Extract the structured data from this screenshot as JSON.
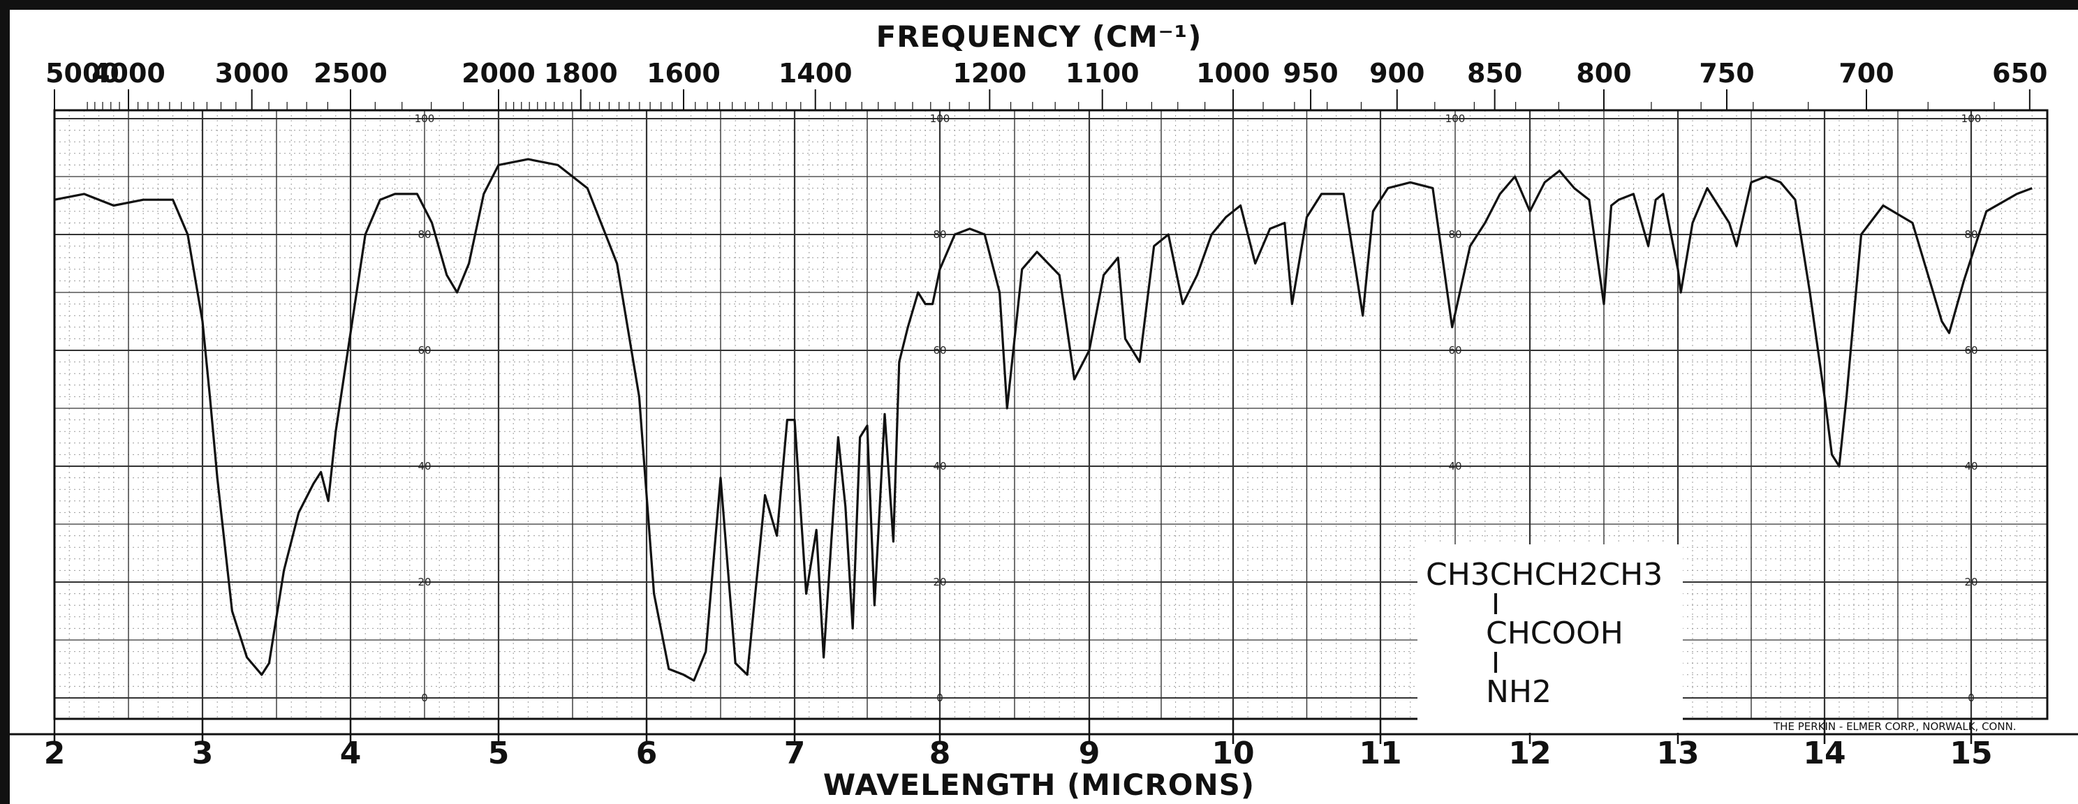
{
  "chart_data": {
    "type": "line",
    "title": "",
    "top_axis_label": "FREQUENCY (CM⁻¹)",
    "xlabel": "WAVELENGTH (MICRONS)",
    "ylabel": "",
    "xlim": [
      2,
      15.5
    ],
    "ylim": [
      0,
      100
    ],
    "grid": true,
    "top_ticks": [
      {
        "label": "5000",
        "wn": 5000
      },
      {
        "label": "4000",
        "wn": 4000
      },
      {
        "label": "3000",
        "wn": 3000
      },
      {
        "label": "2500",
        "wn": 2500
      },
      {
        "label": "2000",
        "wn": 2000
      },
      {
        "label": "1800",
        "wn": 1800
      },
      {
        "label": "1600",
        "wn": 1600
      },
      {
        "label": "1400",
        "wn": 1400
      },
      {
        "label": "1200",
        "wn": 1200
      },
      {
        "label": "1100",
        "wn": 1100
      },
      {
        "label": "1000",
        "wn": 1000
      },
      {
        "label": "950",
        "wn": 950
      },
      {
        "label": "900",
        "wn": 900
      },
      {
        "label": "850",
        "wn": 850
      },
      {
        "label": "800",
        "wn": 800
      },
      {
        "label": "750",
        "wn": 750
      },
      {
        "label": "700",
        "wn": 700
      },
      {
        "label": "650",
        "wn": 650
      }
    ],
    "bottom_ticks": [
      "2",
      "3",
      "4",
      "5",
      "6",
      "7",
      "8",
      "9",
      "10",
      "11",
      "12",
      "13",
      "14",
      "15"
    ],
    "transmittance_scales": [
      {
        "at_micron": 4.5,
        "labels": [
          "100",
          "80",
          "60",
          "40",
          "20",
          "0"
        ]
      },
      {
        "at_micron": 8.0,
        "labels": [
          "100",
          "80",
          "60",
          "40",
          "20",
          "0"
        ]
      },
      {
        "at_micron": 11.5,
        "labels": [
          "100",
          "80",
          "60",
          "40",
          "20",
          "0"
        ]
      },
      {
        "at_micron": 15.0,
        "labels": [
          "100",
          "80",
          "60",
          "40",
          "20",
          "0"
        ]
      }
    ],
    "series": [
      {
        "color": "#111111",
        "x": [
          2.0,
          2.2,
          2.4,
          2.6,
          2.8,
          2.9,
          3.0,
          3.05,
          3.1,
          3.2,
          3.3,
          3.4,
          3.45,
          3.55,
          3.65,
          3.75,
          3.8,
          3.85,
          3.9,
          4.0,
          4.1,
          4.2,
          4.3,
          4.45,
          4.55,
          4.65,
          4.72,
          4.8,
          4.9,
          5.0,
          5.2,
          5.4,
          5.6,
          5.8,
          5.95,
          6.05,
          6.15,
          6.25,
          6.32,
          6.4,
          6.5,
          6.55,
          6.6,
          6.68,
          6.8,
          6.88,
          6.95,
          7.0,
          7.08,
          7.15,
          7.2,
          7.3,
          7.35,
          7.4,
          7.45,
          7.5,
          7.55,
          7.62,
          7.68,
          7.72,
          7.78,
          7.85,
          7.9,
          7.95,
          8.0,
          8.1,
          8.2,
          8.3,
          8.4,
          8.45,
          8.55,
          8.65,
          8.8,
          8.9,
          9.0,
          9.1,
          9.2,
          9.25,
          9.35,
          9.45,
          9.55,
          9.65,
          9.75,
          9.85,
          9.95,
          10.05,
          10.15,
          10.25,
          10.35,
          10.4,
          10.5,
          10.6,
          10.75,
          10.85,
          10.88,
          10.95,
          11.05,
          11.2,
          11.35,
          11.48,
          11.6,
          11.7,
          11.8,
          11.9,
          12.0,
          12.1,
          12.2,
          12.3,
          12.4,
          12.5,
          12.55,
          12.6,
          12.7,
          12.8,
          12.85,
          12.9,
          13.0,
          13.02,
          13.1,
          13.2,
          13.35,
          13.4,
          13.5,
          13.6,
          13.7,
          13.8,
          13.9,
          14.0,
          14.05,
          14.1,
          14.15,
          14.25,
          14.4,
          14.6,
          14.8,
          14.85,
          14.95,
          15.1,
          15.3,
          15.4
        ],
        "y": [
          86,
          87,
          85,
          86,
          86,
          80,
          65,
          52,
          38,
          15,
          7,
          4,
          6,
          22,
          32,
          37,
          39,
          34,
          46,
          63,
          80,
          86,
          87,
          87,
          82,
          73,
          70,
          75,
          87,
          92,
          93,
          92,
          88,
          75,
          52,
          18,
          5,
          4,
          3,
          8,
          38,
          22,
          6,
          4,
          35,
          28,
          48,
          48,
          18,
          29,
          7,
          45,
          33,
          12,
          45,
          47,
          16,
          49,
          27,
          58,
          64,
          70,
          68,
          68,
          74,
          80,
          81,
          80,
          70,
          50,
          74,
          77,
          73,
          55,
          60,
          73,
          76,
          62,
          58,
          78,
          80,
          68,
          73,
          80,
          83,
          85,
          75,
          81,
          82,
          68,
          83,
          87,
          87,
          71,
          66,
          84,
          88,
          89,
          88,
          64,
          78,
          82,
          87,
          90,
          84,
          89,
          91,
          88,
          86,
          68,
          85,
          86,
          87,
          78,
          86,
          87,
          74,
          70,
          82,
          88,
          82,
          78,
          89,
          90,
          89,
          86,
          70,
          52,
          42,
          40,
          52,
          80,
          85,
          82,
          65,
          63,
          72,
          84,
          87,
          88
        ]
      }
    ],
    "annotations": {
      "structure_formula": {
        "line1": "CH3CHCH2CH3",
        "line2": "CHCOOH",
        "line3": "NH2"
      },
      "credit": "THE PERKIN - ELMER CORP., NORWALK, CONN."
    }
  }
}
